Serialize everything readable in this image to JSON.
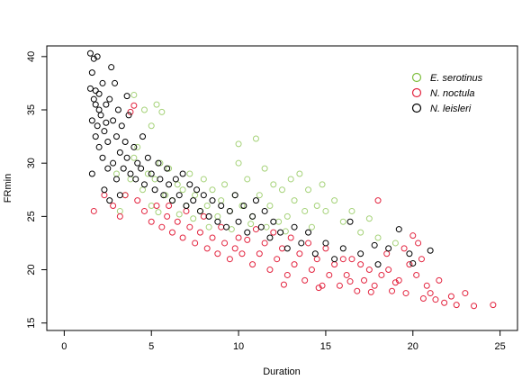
{
  "chart_data": {
    "type": "scatter",
    "title": "",
    "xlabel": "Duration",
    "ylabel": "FRmin",
    "xlim": [
      -1.0,
      26.0
    ],
    "ylim": [
      14.3,
      41.0
    ],
    "xticks": [
      0,
      5,
      10,
      15,
      20,
      25
    ],
    "yticks": [
      15,
      20,
      25,
      30,
      35,
      40
    ],
    "grid": false,
    "legend_position": "top-right",
    "series": [
      {
        "name": "E. serotinus",
        "color": "#7fbf3f",
        "points": [
          [
            3.0,
            29.0
          ],
          [
            3.2,
            25.5
          ],
          [
            3.5,
            27.0
          ],
          [
            3.8,
            28.5
          ],
          [
            4.0,
            30.5
          ],
          [
            4.0,
            36.4
          ],
          [
            4.2,
            31.5
          ],
          [
            4.5,
            27.5
          ],
          [
            4.6,
            35.0
          ],
          [
            4.8,
            29.0
          ],
          [
            5.0,
            26.0
          ],
          [
            5.0,
            33.5
          ],
          [
            5.2,
            28.5
          ],
          [
            5.3,
            35.5
          ],
          [
            5.5,
            30.0
          ],
          [
            5.6,
            34.8
          ],
          [
            5.8,
            27.0
          ],
          [
            6.0,
            29.5
          ],
          [
            6.2,
            26.5
          ],
          [
            6.5,
            28.0
          ],
          [
            6.8,
            27.5
          ],
          [
            7.0,
            26.0
          ],
          [
            7.2,
            29.0
          ],
          [
            7.5,
            27.0
          ],
          [
            7.8,
            25.5
          ],
          [
            8.0,
            28.5
          ],
          [
            8.2,
            26.0
          ],
          [
            8.5,
            27.5
          ],
          [
            8.8,
            25.0
          ],
          [
            9.0,
            26.5
          ],
          [
            9.2,
            28.0
          ],
          [
            9.5,
            25.5
          ],
          [
            9.8,
            27.0
          ],
          [
            10.0,
            30.0
          ],
          [
            10.0,
            31.8
          ],
          [
            10.2,
            26.0
          ],
          [
            10.5,
            28.5
          ],
          [
            10.8,
            25.0
          ],
          [
            11.0,
            32.3
          ],
          [
            11.2,
            27.0
          ],
          [
            11.5,
            29.5
          ],
          [
            11.8,
            26.0
          ],
          [
            12.0,
            28.0
          ],
          [
            12.3,
            24.5
          ],
          [
            12.5,
            27.5
          ],
          [
            12.8,
            25.0
          ],
          [
            13.0,
            28.5
          ],
          [
            13.2,
            26.5
          ],
          [
            13.5,
            29.0
          ],
          [
            13.8,
            25.5
          ],
          [
            14.0,
            27.5
          ],
          [
            14.2,
            24.0
          ],
          [
            14.5,
            26.0
          ],
          [
            14.8,
            28.0
          ],
          [
            15.0,
            25.5
          ],
          [
            15.5,
            26.5
          ],
          [
            16.0,
            24.5
          ],
          [
            16.5,
            25.5
          ],
          [
            17.0,
            23.5
          ],
          [
            17.5,
            24.8
          ],
          [
            18.0,
            23.0
          ],
          [
            19.0,
            22.5
          ],
          [
            8.3,
            24.0
          ],
          [
            9.6,
            23.8
          ],
          [
            7.4,
            24.8
          ],
          [
            6.6,
            25.2
          ],
          [
            10.7,
            24.3
          ],
          [
            11.6,
            24.0
          ],
          [
            12.7,
            23.6
          ],
          [
            5.4,
            25.4
          ]
        ]
      },
      {
        "name": "N. noctula",
        "color": "#e3243f",
        "points": [
          [
            1.7,
            25.5
          ],
          [
            2.3,
            27.0
          ],
          [
            2.8,
            26.0
          ],
          [
            3.2,
            25.0
          ],
          [
            3.5,
            27.0
          ],
          [
            3.8,
            34.8
          ],
          [
            4.0,
            35.4
          ],
          [
            4.2,
            26.5
          ],
          [
            4.6,
            25.5
          ],
          [
            5.0,
            24.5
          ],
          [
            5.3,
            26.0
          ],
          [
            5.6,
            24.0
          ],
          [
            5.9,
            25.0
          ],
          [
            6.2,
            23.5
          ],
          [
            6.5,
            24.5
          ],
          [
            6.8,
            23.0
          ],
          [
            7.2,
            24.0
          ],
          [
            7.5,
            22.5
          ],
          [
            7.8,
            23.5
          ],
          [
            8.2,
            22.0
          ],
          [
            8.5,
            23.0
          ],
          [
            8.8,
            21.5
          ],
          [
            9.2,
            22.5
          ],
          [
            9.5,
            21.0
          ],
          [
            9.8,
            22.0
          ],
          [
            10.2,
            21.5
          ],
          [
            10.5,
            22.8
          ],
          [
            10.8,
            20.5
          ],
          [
            11.2,
            21.5
          ],
          [
            11.5,
            22.5
          ],
          [
            11.8,
            20.0
          ],
          [
            12.2,
            21.0
          ],
          [
            12.5,
            22.0
          ],
          [
            12.8,
            19.5
          ],
          [
            13.2,
            20.5
          ],
          [
            13.5,
            21.5
          ],
          [
            13.8,
            19.0
          ],
          [
            14.2,
            20.0
          ],
          [
            14.5,
            21.0
          ],
          [
            14.8,
            18.5
          ],
          [
            15.2,
            19.5
          ],
          [
            15.5,
            20.5
          ],
          [
            15.8,
            18.5
          ],
          [
            16.2,
            19.5
          ],
          [
            16.5,
            21.0
          ],
          [
            16.8,
            18.0
          ],
          [
            17.2,
            19.0
          ],
          [
            17.5,
            20.0
          ],
          [
            17.8,
            18.5
          ],
          [
            18.0,
            26.5
          ],
          [
            18.2,
            19.5
          ],
          [
            18.5,
            21.5
          ],
          [
            18.8,
            18.0
          ],
          [
            19.2,
            19.0
          ],
          [
            19.5,
            22.0
          ],
          [
            19.8,
            20.5
          ],
          [
            20.0,
            23.2
          ],
          [
            20.2,
            19.5
          ],
          [
            20.5,
            21.0
          ],
          [
            20.8,
            18.5
          ],
          [
            21.0,
            17.8
          ],
          [
            21.3,
            17.2
          ],
          [
            21.5,
            19.0
          ],
          [
            21.8,
            16.9
          ],
          [
            22.2,
            17.5
          ],
          [
            22.5,
            16.7
          ],
          [
            23.0,
            17.8
          ],
          [
            23.5,
            16.6
          ],
          [
            24.6,
            16.7
          ],
          [
            20.3,
            22.5
          ],
          [
            13.0,
            23.0
          ],
          [
            12.0,
            23.5
          ],
          [
            14.0,
            22.5
          ],
          [
            15.0,
            22.0
          ],
          [
            16.0,
            21.0
          ],
          [
            17.0,
            20.5
          ],
          [
            18.6,
            20.0
          ],
          [
            19.0,
            18.8
          ],
          [
            8.0,
            25.0
          ],
          [
            9.0,
            24.0
          ],
          [
            11.0,
            23.8
          ],
          [
            10.0,
            23.0
          ],
          [
            7.0,
            25.5
          ],
          [
            6.0,
            26.0
          ],
          [
            12.6,
            18.6
          ],
          [
            14.6,
            18.3
          ],
          [
            16.4,
            18.9
          ],
          [
            17.6,
            17.9
          ],
          [
            19.6,
            17.8
          ],
          [
            20.6,
            17.3
          ]
        ]
      },
      {
        "name": "N. leisleri",
        "color": "#000000",
        "points": [
          [
            1.5,
            37.0
          ],
          [
            1.5,
            40.3
          ],
          [
            1.6,
            34.0
          ],
          [
            1.6,
            38.5
          ],
          [
            1.7,
            36.0
          ],
          [
            1.7,
            39.8
          ],
          [
            1.8,
            32.5
          ],
          [
            1.8,
            35.5
          ],
          [
            1.9,
            40.0
          ],
          [
            1.9,
            33.5
          ],
          [
            2.0,
            36.5
          ],
          [
            2.0,
            31.5
          ],
          [
            2.1,
            34.5
          ],
          [
            2.2,
            37.5
          ],
          [
            2.2,
            30.5
          ],
          [
            2.3,
            33.0
          ],
          [
            2.4,
            35.5
          ],
          [
            2.5,
            29.5
          ],
          [
            2.5,
            32.0
          ],
          [
            2.6,
            36.0
          ],
          [
            2.7,
            39.0
          ],
          [
            2.8,
            34.0
          ],
          [
            2.8,
            30.0
          ],
          [
            2.9,
            37.5
          ],
          [
            3.0,
            32.5
          ],
          [
            3.0,
            28.5
          ],
          [
            3.1,
            35.0
          ],
          [
            3.2,
            31.0
          ],
          [
            3.3,
            33.5
          ],
          [
            3.4,
            29.5
          ],
          [
            3.5,
            32.0
          ],
          [
            3.6,
            30.5
          ],
          [
            3.7,
            34.5
          ],
          [
            3.8,
            29.0
          ],
          [
            4.0,
            31.5
          ],
          [
            4.1,
            28.5
          ],
          [
            4.2,
            30.0
          ],
          [
            4.4,
            29.5
          ],
          [
            4.5,
            32.5
          ],
          [
            4.6,
            28.0
          ],
          [
            4.8,
            30.5
          ],
          [
            5.0,
            29.0
          ],
          [
            5.2,
            27.5
          ],
          [
            5.4,
            30.0
          ],
          [
            5.5,
            28.5
          ],
          [
            5.7,
            27.0
          ],
          [
            5.9,
            29.5
          ],
          [
            6.0,
            28.0
          ],
          [
            6.2,
            26.5
          ],
          [
            6.4,
            28.5
          ],
          [
            6.6,
            27.0
          ],
          [
            6.8,
            29.0
          ],
          [
            7.0,
            26.0
          ],
          [
            7.2,
            28.0
          ],
          [
            7.4,
            26.5
          ],
          [
            7.6,
            27.5
          ],
          [
            7.8,
            25.5
          ],
          [
            8.0,
            27.0
          ],
          [
            8.3,
            25.0
          ],
          [
            8.5,
            26.5
          ],
          [
            8.8,
            24.5
          ],
          [
            9.0,
            26.0
          ],
          [
            9.3,
            24.0
          ],
          [
            9.5,
            25.5
          ],
          [
            9.8,
            27.0
          ],
          [
            10.0,
            24.5
          ],
          [
            10.3,
            26.0
          ],
          [
            10.5,
            23.5
          ],
          [
            10.8,
            25.0
          ],
          [
            11.0,
            26.5
          ],
          [
            11.3,
            24.0
          ],
          [
            11.5,
            25.5
          ],
          [
            11.8,
            23.0
          ],
          [
            12.0,
            24.5
          ],
          [
            12.4,
            23.5
          ],
          [
            12.8,
            22.0
          ],
          [
            13.2,
            24.0
          ],
          [
            13.6,
            22.5
          ],
          [
            14.0,
            23.5
          ],
          [
            14.4,
            21.5
          ],
          [
            15.0,
            22.5
          ],
          [
            15.5,
            21.0
          ],
          [
            16.0,
            22.0
          ],
          [
            16.4,
            24.5
          ],
          [
            17.0,
            21.5
          ],
          [
            17.8,
            22.3
          ],
          [
            18.0,
            20.5
          ],
          [
            18.6,
            22.0
          ],
          [
            19.2,
            23.8
          ],
          [
            19.8,
            21.5
          ],
          [
            20.0,
            20.6
          ],
          [
            21.0,
            21.8
          ],
          [
            1.6,
            29.0
          ],
          [
            2.3,
            27.5
          ],
          [
            2.6,
            26.5
          ],
          [
            3.2,
            27.0
          ],
          [
            2.0,
            35.0
          ],
          [
            1.8,
            36.8
          ],
          [
            2.4,
            33.8
          ],
          [
            3.6,
            36.3
          ]
        ]
      }
    ]
  }
}
